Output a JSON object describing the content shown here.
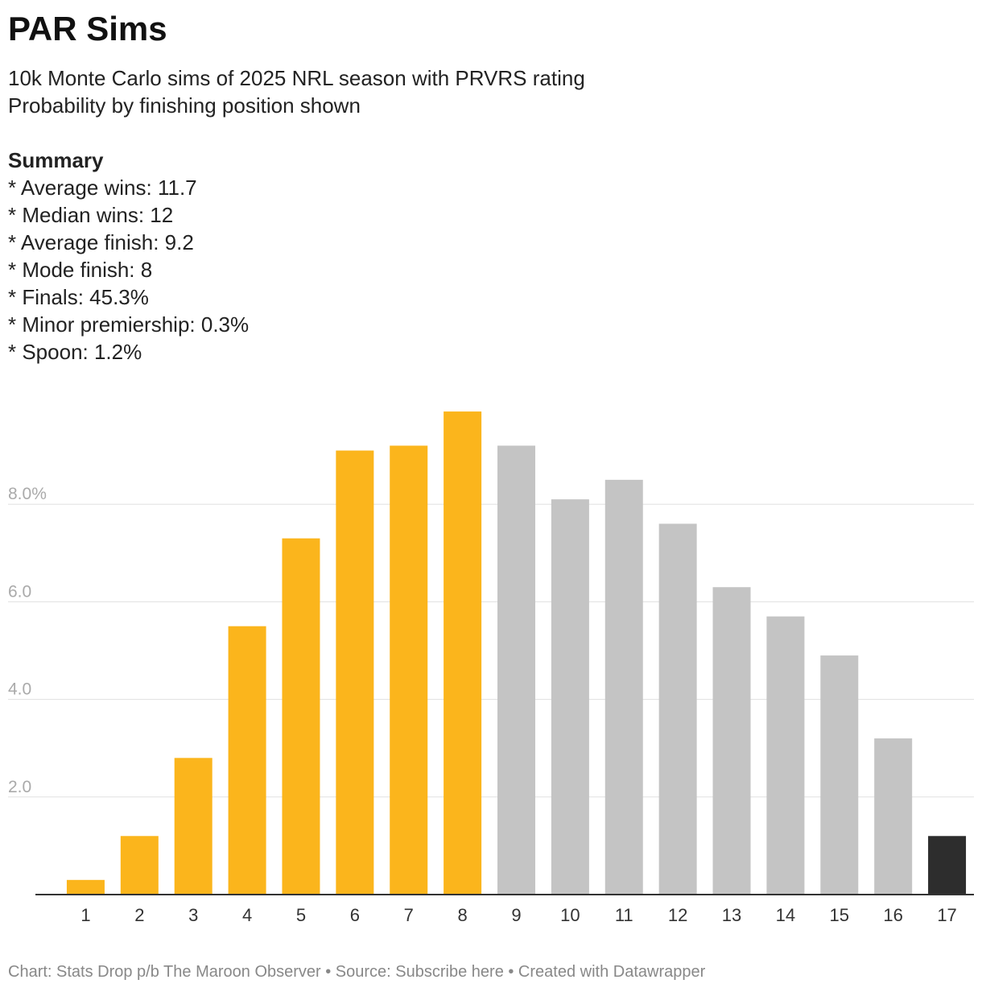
{
  "header": {
    "title": "PAR Sims",
    "subtitle_lines": [
      "10k Monte Carlo sims of 2025 NRL season with PRVRS rating",
      "Probability by finishing position shown"
    ],
    "summary_heading": "Summary",
    "summary_items": [
      "* Average wins: 11.7",
      "* Median wins: 12",
      "* Average finish: 9.2",
      "* Mode finish: 8",
      "* Finals: 45.3%",
      "* Minor premiership: 0.3%",
      "* Spoon: 1.2%"
    ]
  },
  "chart_data": {
    "type": "bar",
    "categories": [
      "1",
      "2",
      "3",
      "4",
      "5",
      "6",
      "7",
      "8",
      "9",
      "10",
      "11",
      "12",
      "13",
      "14",
      "15",
      "16",
      "17"
    ],
    "values": [
      0.3,
      1.2,
      2.8,
      5.5,
      7.3,
      9.1,
      9.2,
      9.9,
      9.2,
      8.1,
      8.5,
      7.6,
      6.3,
      5.7,
      4.9,
      3.2,
      1.2
    ],
    "ylim": [
      0,
      10
    ],
    "yticks": [
      {
        "value": 2,
        "label": "2.0"
      },
      {
        "value": 4,
        "label": "4.0"
      },
      {
        "value": 6,
        "label": "6.0"
      },
      {
        "value": 8,
        "label": "8.0%"
      }
    ],
    "grid": true,
    "colors": {
      "finals": "#fbb51c",
      "non_finals": "#c4c4c4",
      "spoon": "#2d2d2d",
      "grid": "#e0e0e0",
      "axis": "#333333",
      "tick_label": "#aaaaaa"
    },
    "color_groups": [
      "finals",
      "finals",
      "finals",
      "finals",
      "finals",
      "finals",
      "finals",
      "finals",
      "non_finals",
      "non_finals",
      "non_finals",
      "non_finals",
      "non_finals",
      "non_finals",
      "non_finals",
      "non_finals",
      "spoon"
    ]
  },
  "footer": {
    "text": "Chart: Stats Drop p/b The Maroon Observer • Source: Subscribe here • Created with Datawrapper"
  }
}
